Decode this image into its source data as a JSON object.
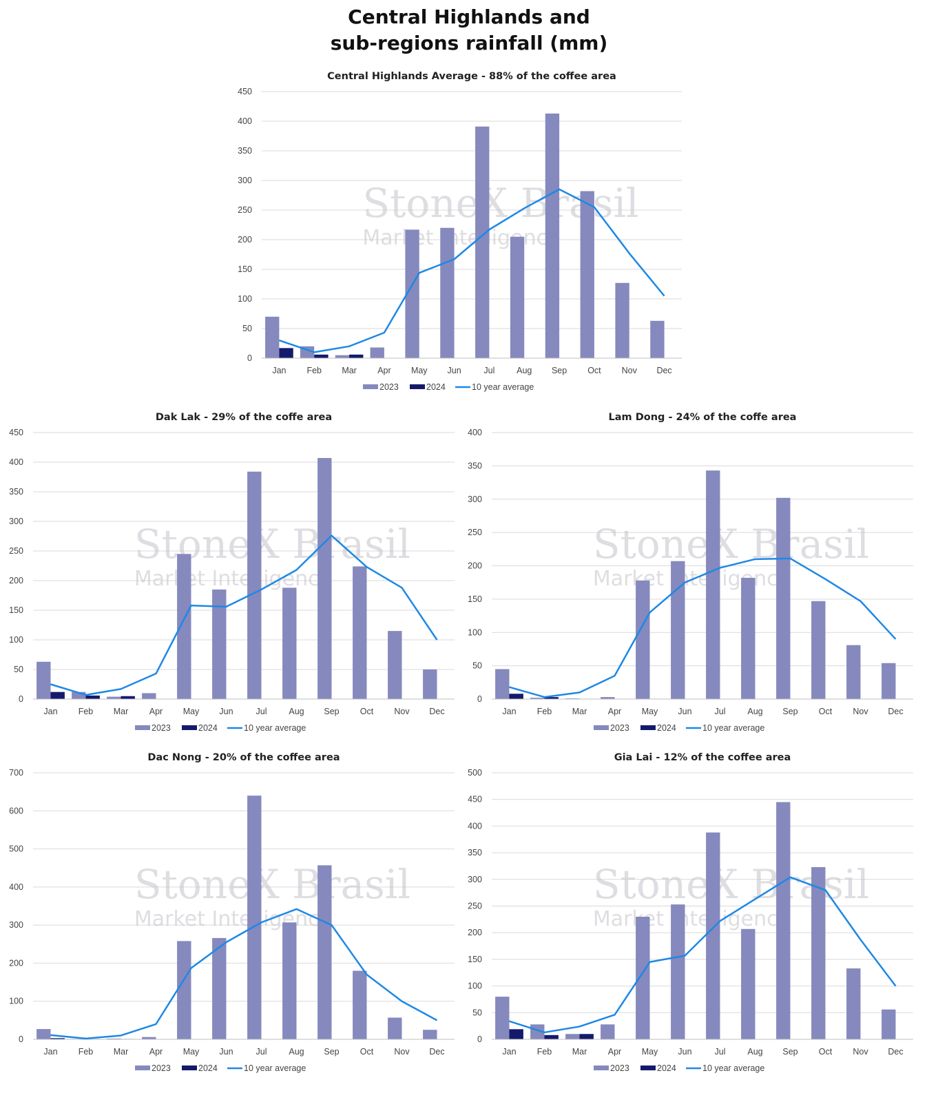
{
  "page": {
    "title_line1": "Central Highlands and",
    "title_line2": "sub-regions rainfall (mm)"
  },
  "watermark": {
    "brand": "StoneX Brasil",
    "subtitle": "Market Intelligence"
  },
  "colors": {
    "bar_2023": "#8589bd",
    "bar_2024": "#141a6b",
    "line_avg": "#1e88e5",
    "grid": "#d9d9d9"
  },
  "chart_data": [
    {
      "type": "bar",
      "title": "Central Highlands Average - 88% of the coffee area",
      "categories": [
        "Jan",
        "Feb",
        "Mar",
        "Apr",
        "May",
        "Jun",
        "Jul",
        "Aug",
        "Sep",
        "Oct",
        "Nov",
        "Dec"
      ],
      "ylim": [
        0,
        450
      ],
      "yticks": [
        0,
        50,
        100,
        150,
        200,
        250,
        300,
        350,
        400,
        450
      ],
      "grid": true,
      "legend_position": "bottom",
      "series": [
        {
          "name": "2023",
          "kind": "bar",
          "values": [
            70,
            20,
            5,
            18,
            217,
            220,
            391,
            205,
            413,
            282,
            127,
            63
          ]
        },
        {
          "name": "2024",
          "kind": "bar",
          "values": [
            17,
            6,
            6,
            null,
            null,
            null,
            null,
            null,
            null,
            null,
            null,
            null
          ]
        },
        {
          "name": "10 year average",
          "kind": "line",
          "values": [
            30,
            10,
            20,
            43,
            144,
            167,
            217,
            253,
            285,
            255,
            177,
            105
          ]
        }
      ]
    },
    {
      "type": "bar",
      "title": "Dak Lak - 29% of the coffe area",
      "categories": [
        "Jan",
        "Feb",
        "Mar",
        "Apr",
        "May",
        "Jun",
        "Jul",
        "Aug",
        "Sep",
        "Oct",
        "Nov",
        "Dec"
      ],
      "ylim": [
        0,
        450
      ],
      "yticks": [
        0,
        50,
        100,
        150,
        200,
        250,
        300,
        350,
        400,
        450
      ],
      "grid": true,
      "legend_position": "bottom",
      "series": [
        {
          "name": "2023",
          "kind": "bar",
          "values": [
            63,
            12,
            4,
            10,
            245,
            185,
            384,
            188,
            407,
            224,
            115,
            50
          ]
        },
        {
          "name": "2024",
          "kind": "bar",
          "values": [
            12,
            6,
            5,
            null,
            null,
            null,
            null,
            null,
            null,
            null,
            null,
            null
          ]
        },
        {
          "name": "10 year average",
          "kind": "line",
          "values": [
            25,
            7,
            17,
            43,
            158,
            156,
            185,
            218,
            276,
            223,
            188,
            100
          ]
        }
      ]
    },
    {
      "type": "bar",
      "title": "Lam Dong - 24% of the coffe area",
      "categories": [
        "Jan",
        "Feb",
        "Mar",
        "Apr",
        "May",
        "Jun",
        "Jul",
        "Aug",
        "Sep",
        "Oct",
        "Nov",
        "Dec"
      ],
      "ylim": [
        0,
        400
      ],
      "yticks": [
        0,
        50,
        100,
        150,
        200,
        250,
        300,
        350,
        400
      ],
      "grid": true,
      "legend_position": "bottom",
      "series": [
        {
          "name": "2023",
          "kind": "bar",
          "values": [
            45,
            2,
            1,
            3,
            178,
            207,
            343,
            182,
            302,
            147,
            81,
            54
          ]
        },
        {
          "name": "2024",
          "kind": "bar",
          "values": [
            8,
            3,
            null,
            null,
            null,
            null,
            null,
            null,
            null,
            null,
            null,
            null
          ]
        },
        {
          "name": "10 year average",
          "kind": "line",
          "values": [
            18,
            3,
            10,
            35,
            130,
            175,
            197,
            210,
            211,
            180,
            147,
            90
          ]
        }
      ]
    },
    {
      "type": "bar",
      "title": "Dac Nong - 20% of the coffee area",
      "categories": [
        "Jan",
        "Feb",
        "Mar",
        "Apr",
        "May",
        "Jun",
        "Jul",
        "Aug",
        "Sep",
        "Oct",
        "Nov",
        "Dec"
      ],
      "ylim": [
        0,
        700
      ],
      "yticks": [
        0,
        100,
        200,
        300,
        400,
        500,
        600,
        700
      ],
      "grid": true,
      "legend_position": "bottom",
      "series": [
        {
          "name": "2023",
          "kind": "bar",
          "values": [
            27,
            1,
            2,
            6,
            258,
            266,
            640,
            307,
            457,
            180,
            57,
            25
          ]
        },
        {
          "name": "2024",
          "kind": "bar",
          "values": [
            3,
            1,
            1,
            null,
            null,
            null,
            null,
            null,
            null,
            null,
            null,
            null
          ]
        },
        {
          "name": "10 year average",
          "kind": "line",
          "values": [
            11,
            2,
            10,
            40,
            187,
            255,
            307,
            342,
            300,
            170,
            100,
            50
          ]
        }
      ]
    },
    {
      "type": "bar",
      "title": "Gia Lai - 12% of the coffee area",
      "categories": [
        "Jan",
        "Feb",
        "Mar",
        "Apr",
        "May",
        "Jun",
        "Jul",
        "Aug",
        "Sep",
        "Oct",
        "Nov",
        "Dec"
      ],
      "ylim": [
        0,
        500
      ],
      "yticks": [
        0,
        50,
        100,
        150,
        200,
        250,
        300,
        350,
        400,
        450,
        500
      ],
      "grid": true,
      "legend_position": "bottom",
      "series": [
        {
          "name": "2023",
          "kind": "bar",
          "values": [
            80,
            28,
            10,
            28,
            230,
            253,
            388,
            207,
            445,
            323,
            133,
            56
          ]
        },
        {
          "name": "2024",
          "kind": "bar",
          "values": [
            19,
            8,
            10,
            null,
            null,
            null,
            null,
            null,
            null,
            null,
            null,
            null
          ]
        },
        {
          "name": "10 year average",
          "kind": "line",
          "values": [
            34,
            13,
            24,
            46,
            145,
            157,
            222,
            263,
            304,
            280,
            187,
            100
          ]
        }
      ]
    }
  ]
}
